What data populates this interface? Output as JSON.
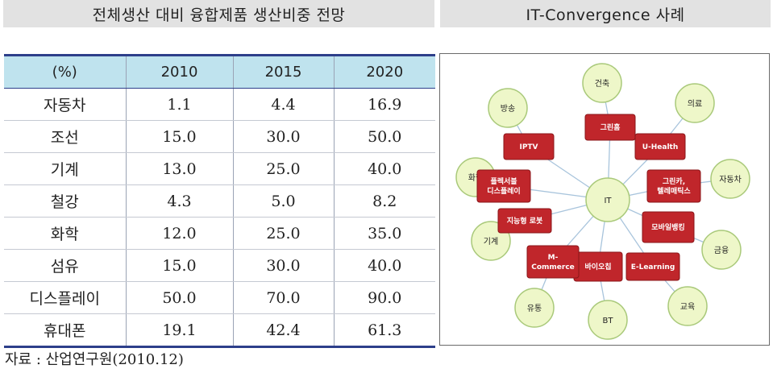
{
  "left_header": "전체생산 대비 융합제품 생산비중 전망",
  "right_header": "IT-Convergence 사례",
  "table": {
    "columns": [
      "(%)",
      "2010",
      "2015",
      "2020"
    ],
    "rows": [
      {
        "label": "자동차",
        "values": [
          "1.1",
          "4.4",
          "16.9"
        ]
      },
      {
        "label": "조선",
        "values": [
          "15.0",
          "30.0",
          "50.0"
        ]
      },
      {
        "label": "기계",
        "values": [
          "13.0",
          "25.0",
          "40.0"
        ]
      },
      {
        "label": "철강",
        "values": [
          "4.3",
          "5.0",
          "8.2"
        ]
      },
      {
        "label": "화학",
        "values": [
          "12.0",
          "25.0",
          "35.0"
        ]
      },
      {
        "label": "섬유",
        "values": [
          "15.0",
          "30.0",
          "40.0"
        ]
      },
      {
        "label": "디스플레이",
        "values": [
          "50.0",
          "70.0",
          "90.0"
        ]
      },
      {
        "label": "휴대폰",
        "values": [
          "19.1",
          "42.4",
          "61.3"
        ]
      }
    ]
  },
  "source": "자료 : 산업연구원(2010.12)",
  "diagram": {
    "center": "IT",
    "industries": [
      "건축",
      "의료",
      "자동차",
      "금융",
      "교육",
      "BT",
      "유통",
      "기계",
      "화학",
      "방송"
    ],
    "convergence": [
      [
        "그린홈"
      ],
      [
        "U-Health"
      ],
      [
        "그린카,",
        "텔레매틱스"
      ],
      [
        "모바일뱅킹"
      ],
      [
        "E-Learning"
      ],
      [
        "바이오칩"
      ],
      [
        "M-",
        "Commerce"
      ],
      [
        "지능형 로봇"
      ],
      [
        "플렉서블",
        "디스플레이"
      ],
      [
        "IPTV"
      ]
    ],
    "colors": {
      "box": "#c0262b",
      "box_border": "#8a1519",
      "circle_fill": "#eef7c9",
      "circle_border": "#a9c97a",
      "line": "#a8c4dc"
    }
  }
}
